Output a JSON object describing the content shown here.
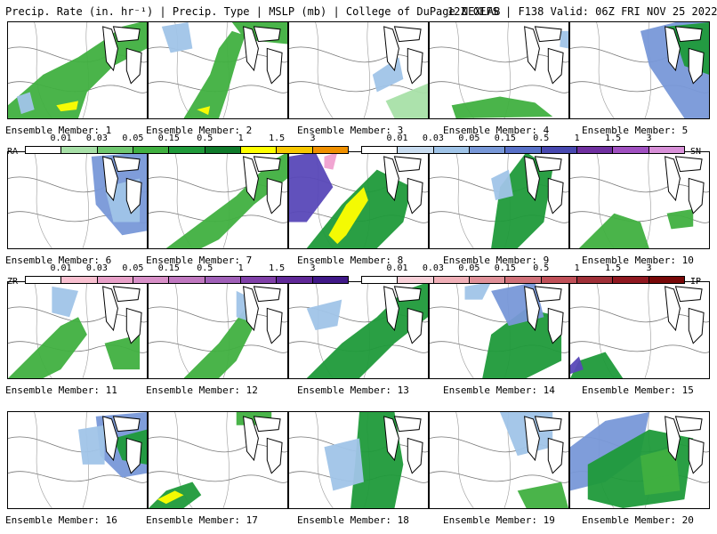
{
  "header": {
    "left": "Precip. Rate (in. hr⁻¹) | Precip. Type | MSLP (mb) | College of DuPage NEXLAB",
    "right": "12Z GEFS | F138 Valid: 06Z FRI NOV 25 2022"
  },
  "members": [
    "Ensemble Member: 1",
    "Ensemble Member: 2",
    "Ensemble Member: 3",
    "Ensemble Member: 4",
    "Ensemble Member: 5",
    "Ensemble Member: 6",
    "Ensemble Member: 7",
    "Ensemble Member: 8",
    "Ensemble Member: 9",
    "Ensemble Member: 10",
    "Ensemble Member: 11",
    "Ensemble Member: 12",
    "Ensemble Member: 13",
    "Ensemble Member: 14",
    "Ensemble Member: 15",
    "Ensemble Member: 16",
    "Ensemble Member: 17",
    "Ensemble Member: 18",
    "Ensemble Member: 19",
    "Ensemble Member: 20"
  ],
  "legend": {
    "rain": {
      "label": "RA",
      "ticks": [
        "0.01",
        "0.03",
        "0.05",
        "0.15",
        "0.5",
        "1",
        "1.5",
        "3"
      ],
      "colors": [
        "#ffffff",
        "#a8e0a8",
        "#70c870",
        "#40b040",
        "#1f9a3a",
        "#0f7a2a",
        "#ffff00",
        "#f8c800",
        "#f09000"
      ]
    },
    "snow": {
      "label": "SN",
      "ticks": [
        "0.01",
        "0.03",
        "0.05",
        "0.15",
        "0.5",
        "1",
        "1.5",
        "3"
      ],
      "colors": [
        "#ffffff",
        "#c8dcf0",
        "#a0c4e8",
        "#7898d8",
        "#5870c8",
        "#4848b0",
        "#7030a0",
        "#a050c0",
        "#d890d8"
      ]
    },
    "freezing_rain": {
      "label": "ZR",
      "ticks": [
        "0.01",
        "0.03",
        "0.05",
        "0.15",
        "0.5",
        "1",
        "1.5",
        "3"
      ],
      "colors": [
        "#ffffff",
        "#f8c0d0",
        "#e8a0c8",
        "#d890c8",
        "#c078c0",
        "#a060b8",
        "#8040a8",
        "#602898",
        "#401888"
      ]
    },
    "sleet": {
      "label": "IP",
      "ticks": [
        "0.01",
        "0.03",
        "0.05",
        "0.15",
        "0.5",
        "1",
        "1.5",
        "3"
      ],
      "colors": [
        "#ffffff",
        "#f8d0d8",
        "#f0b0b8",
        "#e09098",
        "#d07078",
        "#c05058",
        "#a03038",
        "#901820",
        "#780808"
      ]
    }
  }
}
